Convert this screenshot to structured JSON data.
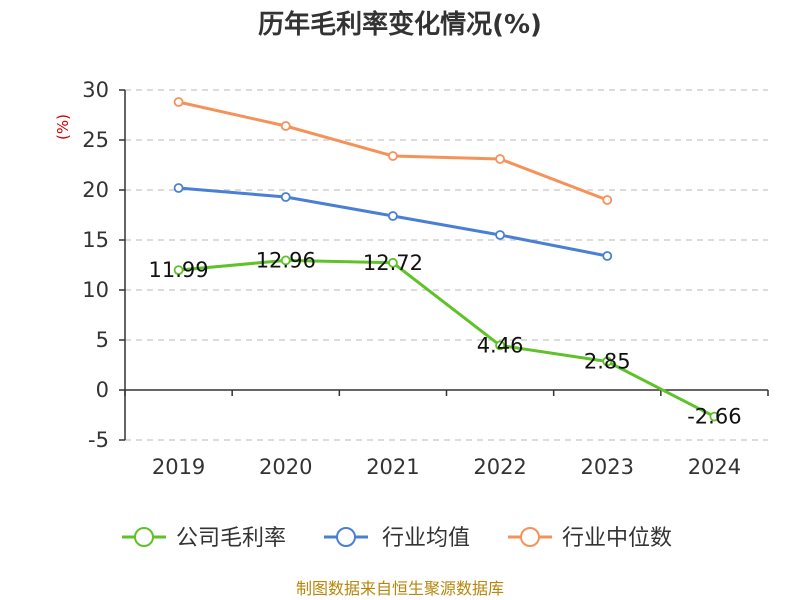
{
  "chart_data": {
    "type": "line",
    "title": "历年毛利率变化情况(%)",
    "ylabel": "(%)",
    "categories": [
      "2019",
      "2020",
      "2021",
      "2022",
      "2023",
      "2024"
    ],
    "ylim": [
      -5,
      30
    ],
    "yticks": [
      30,
      25,
      20,
      15,
      10,
      5,
      0,
      -5
    ],
    "grid": true,
    "legend_position": "bottom",
    "series": [
      {
        "name": "公司毛利率",
        "color": "#5ec228",
        "values": [
          11.99,
          12.96,
          12.72,
          4.46,
          2.85,
          -2.66
        ],
        "labels": [
          "11.99",
          "12.96",
          "12.72",
          "4.46",
          "2.85",
          "-2.66"
        ]
      },
      {
        "name": "行业均值",
        "color": "#4a7fd6",
        "values": [
          20.2,
          19.3,
          17.4,
          15.5,
          13.4,
          null
        ]
      },
      {
        "name": "行业中位数",
        "color": "#f5925a",
        "values": [
          28.8,
          26.4,
          23.4,
          23.1,
          19.0,
          null
        ]
      }
    ]
  },
  "footer": {
    "source": "制图数据来自恒生聚源数据库"
  }
}
